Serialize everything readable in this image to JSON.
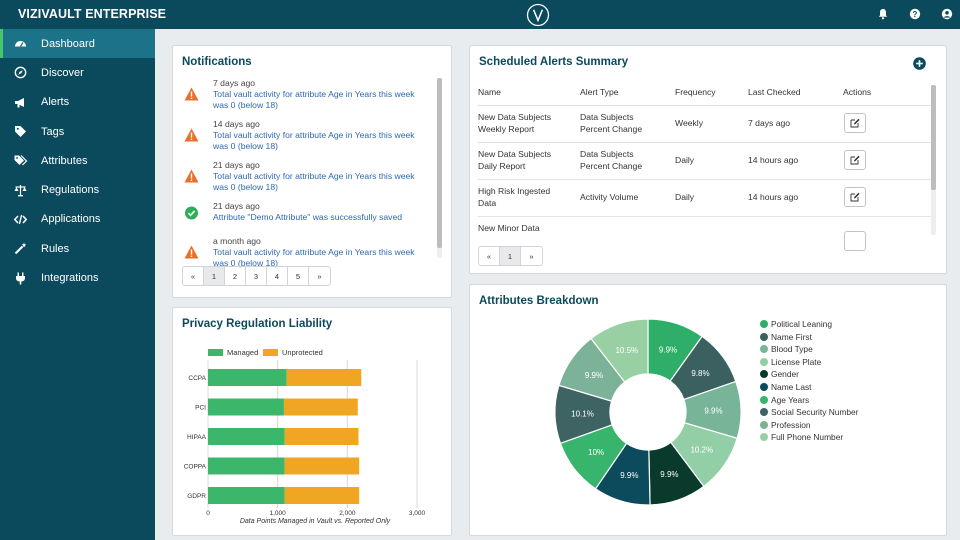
{
  "app": {
    "brand": "VIZIVAULT ENTERPRISE"
  },
  "topbar": {
    "icons": [
      "bell-icon",
      "help-icon",
      "user-icon"
    ]
  },
  "sidebar": {
    "items": [
      {
        "label": "Dashboard",
        "icon": "dashboard-icon",
        "active": true
      },
      {
        "label": "Discover",
        "icon": "compass-icon"
      },
      {
        "label": "Alerts",
        "icon": "megaphone-icon"
      },
      {
        "label": "Tags",
        "icon": "tag-icon"
      },
      {
        "label": "Attributes",
        "icon": "tags-icon"
      },
      {
        "label": "Regulations",
        "icon": "balance-scale-icon"
      },
      {
        "label": "Applications",
        "icon": "code-icon"
      },
      {
        "label": "Rules",
        "icon": "magic-wand-icon"
      },
      {
        "label": "Integrations",
        "icon": "plug-icon"
      }
    ]
  },
  "notifications": {
    "title": "Notifications",
    "items": [
      {
        "time": "7 days ago",
        "text": "Total vault activity for attribute Age in Years this week was 0 (below 18)",
        "status": "warning"
      },
      {
        "time": "14 days ago",
        "text": "Total vault activity for attribute Age in Years this week was 0 (below 18)",
        "status": "warning"
      },
      {
        "time": "21 days ago",
        "text": "Total vault activity for attribute Age in Years this week was 0 (below 18)",
        "status": "warning"
      },
      {
        "time": "21 days ago",
        "text": "Attribute \"Demo Attribute\" was successfully saved",
        "status": "success"
      },
      {
        "time": "a month ago",
        "text": "Total vault activity for attribute Age in Years this week was 0 (below 18)",
        "status": "warning"
      }
    ],
    "pager": {
      "first": "«",
      "pages": [
        "1",
        "2",
        "3",
        "4",
        "5"
      ],
      "last": "»",
      "active": "1"
    }
  },
  "alerts": {
    "title": "Scheduled Alerts Summary",
    "columns": [
      "Name",
      "Alert Type",
      "Frequency",
      "Last Checked",
      "Actions"
    ],
    "rows": [
      {
        "name": "New Data Subjects Weekly Report",
        "type": "Data Subjects Percent Change",
        "frequency": "Weekly",
        "last_checked": "7 days ago"
      },
      {
        "name": "New Data Subjects Daily Report",
        "type": "Data Subjects Percent Change",
        "frequency": "Daily",
        "last_checked": "14 hours ago"
      },
      {
        "name": "High Risk Ingested Data",
        "type": "Activity Volume",
        "frequency": "Daily",
        "last_checked": "14 hours ago"
      },
      {
        "name": "New Minor Data",
        "type": "",
        "frequency": "",
        "last_checked": ""
      }
    ],
    "pager": {
      "first": "«",
      "pages": [
        "1"
      ],
      "last": "»",
      "active": "1"
    }
  },
  "privacy": {
    "title": "Privacy Regulation Liability",
    "chart_data": {
      "type": "bar",
      "orientation": "horizontal",
      "stacked": true,
      "categories": [
        "CCPA",
        "PCI",
        "HIPAA",
        "COPPA",
        "GDPR"
      ],
      "series": [
        {
          "name": "Managed",
          "values": [
            1130,
            1090,
            1100,
            1100,
            1100
          ],
          "color": "#3cb66a"
        },
        {
          "name": "Unprotected",
          "values": [
            1070,
            1060,
            1060,
            1070,
            1070
          ],
          "color": "#f0a623"
        }
      ],
      "xlabel": "Data Points Managed in Vault vs. Reported Only",
      "xticks": [
        "0",
        "1,000",
        "2,000",
        "3,000"
      ],
      "xlim": [
        0,
        3000
      ],
      "grid": true,
      "legend": "top"
    }
  },
  "breakdown": {
    "title": "Attributes Breakdown",
    "chart_data": {
      "type": "pie",
      "donut": true,
      "labels": [
        "Political Leaning",
        "Name First",
        "Blood Type",
        "License Plate",
        "Gender",
        "Name Last",
        "Age Years",
        "Social Security Number",
        "Profession",
        "Full Phone Number"
      ],
      "values": [
        9.9,
        9.8,
        9.9,
        10.2,
        9.9,
        9.9,
        10,
        10.1,
        9.9,
        10.5
      ],
      "value_labels": [
        "9.9%",
        "9.8%",
        "9.9%",
        "10.2%",
        "9.9%",
        "9.9%",
        "10%",
        "10.1%",
        "9.9%",
        "10.5%"
      ],
      "colors": [
        "#2fae6a",
        "#3a6060",
        "#78b498",
        "#93cfa6",
        "#0a3a2c",
        "#0c4b5c",
        "#38b56c",
        "#3e6363",
        "#7cb298",
        "#98d0a3"
      ],
      "legend": "right"
    }
  }
}
